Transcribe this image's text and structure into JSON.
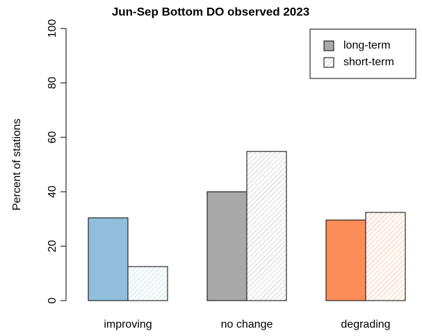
{
  "chart_data": {
    "type": "bar",
    "title": "Jun-Sep Bottom DO observed 2023",
    "y_label": "Percent of stations",
    "categories": [
      "improving",
      "no change",
      "degrading"
    ],
    "series": [
      {
        "name": "long-term",
        "colors": [
          "#91bfdb",
          "#a9a9a9",
          "#fc8d59"
        ],
        "hatch": false,
        "values": [
          30.4,
          40,
          29.6
        ]
      },
      {
        "name": "short-term",
        "colors": [
          "#91bfdb",
          "#a9a9a9",
          "#fc8d59"
        ],
        "hatch": true,
        "values": [
          12.5,
          54.8,
          32.4
        ]
      }
    ],
    "legend_color": "#a9a9a9",
    "legend": "top-right",
    "ylim": [
      0,
      100
    ],
    "yticks": [
      0,
      20,
      40,
      60,
      80,
      100
    ],
    "grid": false
  }
}
